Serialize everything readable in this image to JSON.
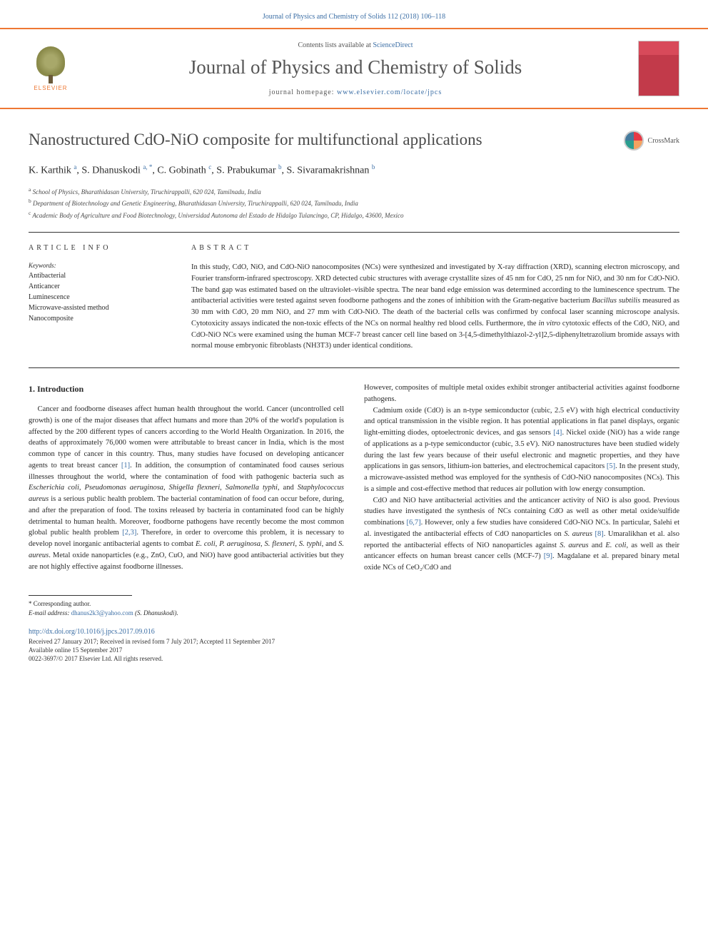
{
  "colors": {
    "accent_orange": "#ee7733",
    "link_blue": "#3b6ea5",
    "text_gray": "#4a4a4a",
    "cover_red": "#d84a5a"
  },
  "typography": {
    "body_size_pt": 10.5,
    "title_size_pt": 23,
    "journal_title_size_pt": 27
  },
  "header": {
    "citation": "Journal of Physics and Chemistry of Solids 112 (2018) 106–118",
    "publisher": "ELSEVIER",
    "contents_prefix": "Contents lists available at ",
    "contents_link": "ScienceDirect",
    "journal_title": "Journal of Physics and Chemistry of Solids",
    "homepage_prefix": "journal homepage: ",
    "homepage_url": "www.elsevier.com/locate/jpcs"
  },
  "article": {
    "title": "Nanostructured CdO-NiO composite for multifunctional applications",
    "crossmark": "CrossMark",
    "authors_html": "K. Karthik <sup>a</sup>, S. Dhanuskodi <sup>a, *</sup>, C. Gobinath <sup>c</sup>, S. Prabukumar <sup>b</sup>, S. Sivaramakrishnan <sup>b</sup>",
    "affiliations": [
      {
        "sup": "a",
        "text": "School of Physics, Bharathidasan University, Tiruchirappalli, 620 024, Tamilnadu, India"
      },
      {
        "sup": "b",
        "text": "Department of Biotechnology and Genetic Engineering, Bharathidasan University, Tiruchirappalli, 620 024, Tamilnadu, India"
      },
      {
        "sup": "c",
        "text": "Academic Body of Agriculture and Food Biotechnology, Universidad Autonoma del Estado de Hidalgo Tulancingo, CP, Hidalgo, 43600, Mexico"
      }
    ]
  },
  "info": {
    "heading": "ARTICLE INFO",
    "keywords_label": "Keywords:",
    "keywords": [
      "Antibacterial",
      "Anticancer",
      "Luminescence",
      "Microwave-assisted method",
      "Nanocomposite"
    ]
  },
  "abstract": {
    "heading": "ABSTRACT",
    "text": "In this study, CdO, NiO, and CdO-NiO nanocomposites (NCs) were synthesized and investigated by X-ray diffraction (XRD), scanning electron microscopy, and Fourier transform-infrared spectroscopy. XRD detected cubic structures with average crystallite sizes of 45 nm for CdO, 25 nm for NiO, and 30 nm for CdO-NiO. The band gap was estimated based on the ultraviolet–visible spectra. The near band edge emission was determined according to the luminescence spectrum. The antibacterial activities were tested against seven foodborne pathogens and the zones of inhibition with the Gram-negative bacterium Bacillus subtilis measured as 30 mm with CdO, 20 mm NiO, and 27 mm with CdO-NiO. The death of the bacterial cells was confirmed by confocal laser scanning microscope analysis. Cytotoxicity assays indicated the non-toxic effects of the NCs on normal healthy red blood cells. Furthermore, the in vitro cytotoxic effects of the CdO, NiO, and CdO-NiO NCs were examined using the human MCF-7 breast cancer cell line based on 3-[4,5-dimethylthiazol-2-yl]2,5-diphenyltetrazolium bromide assays with normal mouse embryonic fibroblasts (NH3T3) under identical conditions."
  },
  "body": {
    "section_number": "1.",
    "section_title": "Introduction",
    "left_col": "Cancer and foodborne diseases affect human health throughout the world. Cancer (uncontrolled cell growth) is one of the major diseases that affect humans and more than 20% of the world's population is affected by the 200 different types of cancers according to the World Health Organization. In 2016, the deaths of approximately 76,000 women were attributable to breast cancer in India, which is the most common type of cancer in this country. Thus, many studies have focused on developing anticancer agents to treat breast cancer [1]. In addition, the consumption of contaminated food causes serious illnesses throughout the world, where the contamination of food with pathogenic bacteria such as Escherichia coli, Pseudomonas aeruginosa, Shigella flexneri, Salmonella typhi, and Staphylococcus aureus is a serious public health problem. The bacterial contamination of food can occur before, during, and after the preparation of food. The toxins released by bacteria in contaminated food can be highly detrimental to human health. Moreover, foodborne pathogens have recently become the most common global public health problem [2,3]. Therefore, in order to overcome this problem, it is necessary to develop novel inorganic antibacterial agents to combat E. coli, P. aeruginosa, S. flexneri, S. typhi, and S. aureus. Metal oxide nanoparticles (e.g., ZnO, CuO, and NiO) have good antibacterial activities but they are not highly effective against foodborne illnesses.",
    "right_para1": "However, composites of multiple metal oxides exhibit stronger antibacterial activities against foodborne pathogens.",
    "right_para2": "Cadmium oxide (CdO) is an n-type semiconductor (cubic, 2.5 eV) with high electrical conductivity and optical transmission in the visible region. It has potential applications in flat panel displays, organic light-emitting diodes, optoelectronic devices, and gas sensors [4]. Nickel oxide (NiO) has a wide range of applications as a p-type semiconductor (cubic, 3.5 eV). NiO nanostructures have been studied widely during the last few years because of their useful electronic and magnetic properties, and they have applications in gas sensors, lithium-ion batteries, and electrochemical capacitors [5]. In the present study, a microwave-assisted method was employed for the synthesis of CdO-NiO nanocomposites (NCs). This is a simple and cost-effective method that reduces air pollution with low energy consumption.",
    "right_para3": "CdO and NiO have antibacterial activities and the anticancer activity of NiO is also good. Previous studies have investigated the synthesis of NCs containing CdO as well as other metal oxide/sulfide combinations [6,7]. However, only a few studies have considered CdO-NiO NCs. In particular, Salehi et al. investigated the antibacterial effects of CdO nanoparticles on S. aureus [8]. Umaralikhan et al. also reported the antibacterial effects of NiO nanoparticles against S. aureus and E. coli, as well as their anticancer effects on human breast cancer cells (MCF-7) [9]. Magdalane et al. prepared binary metal oxide NCs of CeO₂/CdO and"
  },
  "footer": {
    "corresponding": "* Corresponding author.",
    "email_label": "E-mail address: ",
    "email": "dhanus2k3@yahoo.com",
    "email_name": " (S. Dhanuskodi).",
    "doi": "http://dx.doi.org/10.1016/j.jpcs.2017.09.016",
    "dates": "Received 27 January 2017; Received in revised form 7 July 2017; Accepted 11 September 2017",
    "available": "Available online 15 September 2017",
    "copyright": "0022-3697/© 2017 Elsevier Ltd. All rights reserved."
  }
}
